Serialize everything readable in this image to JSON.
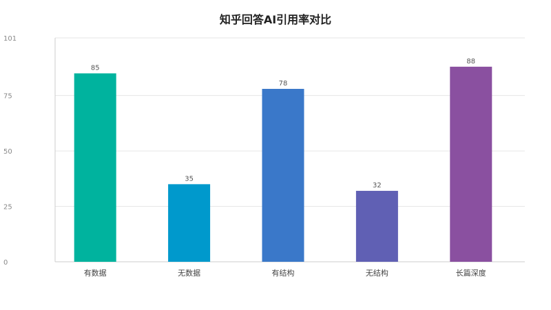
{
  "chart_data": {
    "type": "bar",
    "title": "知乎回答AI引用率对比",
    "categories": [
      "有数据",
      "无数据",
      "有结构",
      "无结构",
      "长篇深度"
    ],
    "values": [
      85,
      35,
      78,
      32,
      88
    ],
    "colors": [
      "#00b39e",
      "#0099cc",
      "#3a78c9",
      "#6060b4",
      "#8a50a0"
    ],
    "ylim": [
      0,
      101
    ],
    "yticks": [
      0,
      25,
      50,
      75,
      101
    ],
    "xlabel": "",
    "ylabel": "",
    "grid": true,
    "legend": "none"
  }
}
